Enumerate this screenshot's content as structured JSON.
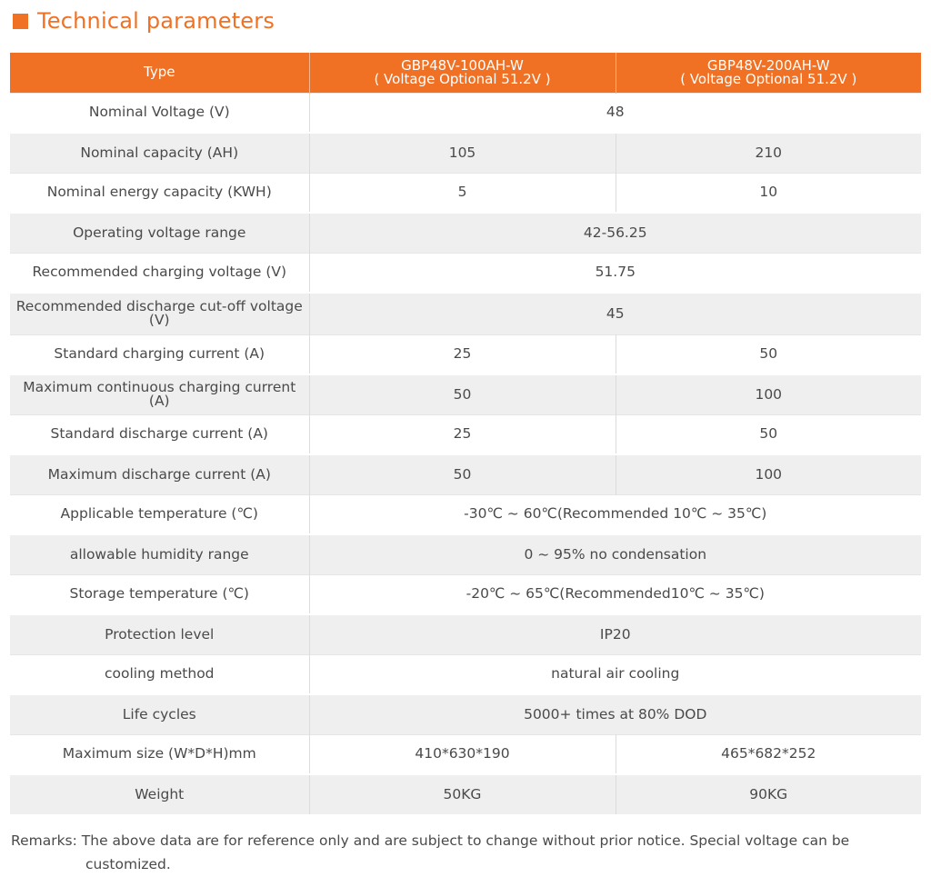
{
  "title": "Technical parameters",
  "table": {
    "headers": [
      "Type",
      "GBP48V-100AH-W",
      "( Voltage Optional 51.2V )",
      "GBP48V-200AH-W",
      "( Voltage Optional 51.2V )"
    ],
    "rows": [
      {
        "label": "Nominal Voltage (V)",
        "value": "48"
      },
      {
        "label": "Nominal capacity (AH)",
        "a": "105",
        "b": "210"
      },
      {
        "label": "Nominal  energy capacity  (KWH)",
        "a": "5",
        "b": "10"
      },
      {
        "label": "Operating voltage range",
        "value": "42-56.25"
      },
      {
        "label": "Recommended charging voltage (V)",
        "value": "51.75"
      },
      {
        "label": "Recommended discharge cut-off voltage (V)",
        "value": "45"
      },
      {
        "label": "Standard charging current (A)",
        "a": "25",
        "b": "50"
      },
      {
        "label": "Maximum continuous charging current (A)",
        "a": "50",
        "b": "100"
      },
      {
        "label": "Standard discharge current (A)",
        "a": "25",
        "b": "50"
      },
      {
        "label": "Maximum discharge current (A)",
        "a": "50",
        "b": "100"
      },
      {
        "label": "Applicable temperature (℃)",
        "value": "-30℃ ~ 60℃(Recommended 10℃ ~ 35℃)"
      },
      {
        "label": "allowable humidity range",
        "value": "0 ~ 95% no condensation"
      },
      {
        "label": "Storage temperature (℃)",
        "value": "-20℃ ~ 65℃(Recommended10℃ ~ 35℃)"
      },
      {
        "label": "Protection level",
        "value": "IP20"
      },
      {
        "label": "cooling method",
        "value": "natural air cooling"
      },
      {
        "label": "Life cycles",
        "value": "5000+ times at 80% DOD"
      },
      {
        "label": "Maximum size (W*D*H)mm",
        "a": "410*630*190",
        "b": "465*682*252"
      },
      {
        "label": "Weight",
        "a": "50KG",
        "b": "90KG"
      }
    ]
  },
  "remarks": {
    "line1": "Remarks: The above data are for reference only and are subject to change without prior notice. Special voltage can be",
    "line2": "customized."
  }
}
